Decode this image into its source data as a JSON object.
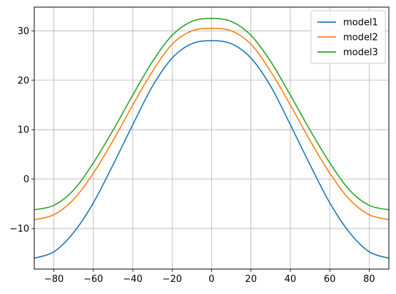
{
  "chart_data": {
    "type": "line",
    "title": "",
    "xlabel": "",
    "ylabel": "",
    "xlim": [
      -90,
      90
    ],
    "ylim": [
      -18.2,
      34.8
    ],
    "xticks": [
      -80,
      -60,
      -40,
      -20,
      0,
      20,
      40,
      60,
      80
    ],
    "yticks": [
      -10,
      0,
      10,
      20,
      30
    ],
    "xtick_labels": [
      "−80",
      "−60",
      "−40",
      "−20",
      "0",
      "20",
      "40",
      "60",
      "80"
    ],
    "ytick_labels": [
      "−10",
      "0",
      "10",
      "20",
      "30"
    ],
    "grid": true,
    "legend_position": "top-right",
    "x": [
      -90,
      -80,
      -70,
      -60,
      -50,
      -40,
      -30,
      -20,
      -10,
      0,
      10,
      20,
      30,
      40,
      50,
      60,
      70,
      80,
      90
    ],
    "series": [
      {
        "name": "model1",
        "color": "#1f77b4",
        "values": [
          -16.0,
          -14.7,
          -10.8,
          -4.8,
          2.9,
          11.0,
          18.8,
          24.5,
          27.4,
          28.0,
          27.4,
          24.5,
          18.8,
          11.0,
          2.9,
          -4.8,
          -10.8,
          -14.7,
          -16.0
        ]
      },
      {
        "name": "model2",
        "color": "#ff7f0e",
        "values": [
          -8.2,
          -7.2,
          -4.1,
          1.2,
          7.8,
          15.0,
          21.8,
          27.3,
          30.0,
          30.5,
          30.0,
          27.3,
          21.8,
          15.0,
          7.8,
          1.2,
          -4.1,
          -7.2,
          -8.2
        ]
      },
      {
        "name": "model3",
        "color": "#2ca02c",
        "values": [
          -6.2,
          -5.3,
          -2.2,
          3.3,
          9.9,
          17.0,
          23.8,
          29.1,
          31.9,
          32.5,
          31.9,
          29.1,
          23.8,
          17.0,
          9.9,
          3.3,
          -2.2,
          -5.3,
          -6.2
        ]
      }
    ]
  }
}
